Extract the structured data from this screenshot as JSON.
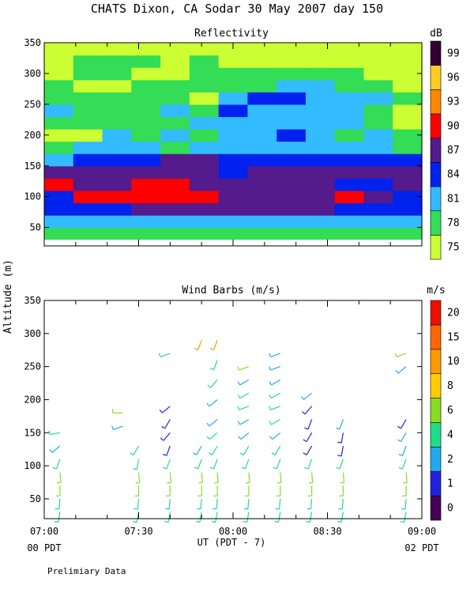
{
  "title": "CHATS Dixon, CA  Sodar  30 May 2007  day 150",
  "footer_note": "Prelimiary Data",
  "shared_ylabel": "Altitude (m)",
  "x_axis": {
    "ticks": [
      "07:00",
      "07:30",
      "08:00",
      "08:30",
      "09:00"
    ],
    "label": "UT  (PDT - 7)",
    "left_local": "00 PDT",
    "right_local": "02 PDT",
    "range_minutes": [
      0,
      120
    ]
  },
  "colors": {
    "refl_levels": [
      "#ccff33",
      "#33dd55",
      "#33bbff",
      "#0022ee",
      "#551a8b",
      "#ff0000",
      "#ff8800",
      "#ffcc22",
      "#330033"
    ],
    "wind_levels": [
      "#440055",
      "#2222dd",
      "#22aaee",
      "#22dd88",
      "#88dd22",
      "#ffcc00",
      "#ff9900",
      "#ff6600",
      "#ee1100"
    ]
  },
  "chart_data": [
    {
      "type": "heatmap",
      "title": "Reflectivity",
      "ylim": [
        20,
        350
      ],
      "yticks": [
        50,
        100,
        150,
        200,
        250,
        300,
        350
      ],
      "colorbar": {
        "unit": "dB",
        "labels": [
          "75",
          "78",
          "81",
          "84",
          "87",
          "90",
          "93",
          "96",
          "99"
        ]
      },
      "x_times": [
        "07:00",
        "07:10",
        "07:20",
        "07:30",
        "07:40",
        "07:50",
        "08:00",
        "08:10",
        "08:20",
        "08:30",
        "08:40",
        "08:50",
        "09:00"
      ],
      "altitudes": [
        40,
        60,
        80,
        100,
        120,
        140,
        160,
        180,
        200,
        220,
        240,
        260,
        280,
        300,
        320,
        340
      ],
      "level_index_grid": [
        [
          1,
          1,
          1,
          1,
          1,
          1,
          1,
          1,
          1,
          1,
          1,
          1,
          1
        ],
        [
          2,
          2,
          2,
          2,
          2,
          2,
          2,
          2,
          2,
          2,
          2,
          2,
          2
        ],
        [
          3,
          3,
          3,
          4,
          4,
          4,
          4,
          4,
          4,
          4,
          3,
          3,
          3
        ],
        [
          3,
          5,
          5,
          5,
          5,
          5,
          4,
          4,
          4,
          4,
          5,
          4,
          3
        ],
        [
          5,
          4,
          4,
          5,
          5,
          4,
          4,
          4,
          4,
          4,
          3,
          3,
          4
        ],
        [
          4,
          4,
          4,
          4,
          4,
          4,
          3,
          4,
          4,
          4,
          4,
          4,
          4
        ],
        [
          2,
          3,
          3,
          3,
          4,
          4,
          3,
          3,
          3,
          3,
          3,
          3,
          3
        ],
        [
          1,
          2,
          2,
          2,
          1,
          2,
          2,
          2,
          2,
          2,
          2,
          2,
          1
        ],
        [
          0,
          0,
          2,
          1,
          2,
          1,
          2,
          2,
          3,
          2,
          1,
          2,
          1
        ],
        [
          1,
          1,
          1,
          1,
          1,
          2,
          2,
          2,
          2,
          2,
          2,
          1,
          0
        ],
        [
          2,
          1,
          1,
          1,
          2,
          1,
          3,
          2,
          2,
          2,
          2,
          1,
          0
        ],
        [
          1,
          1,
          1,
          1,
          1,
          0,
          2,
          3,
          3,
          2,
          2,
          2,
          1
        ],
        [
          1,
          0,
          0,
          1,
          1,
          1,
          1,
          1,
          2,
          2,
          1,
          1,
          0
        ],
        [
          0,
          1,
          1,
          0,
          0,
          1,
          1,
          1,
          1,
          1,
          1,
          0,
          0
        ],
        [
          0,
          1,
          1,
          1,
          0,
          1,
          0,
          0,
          0,
          0,
          0,
          0,
          0
        ],
        [
          0,
          0,
          0,
          0,
          0,
          0,
          0,
          0,
          0,
          0,
          0,
          0,
          0
        ]
      ]
    },
    {
      "type": "scatter",
      "title": "Wind Barbs (m/s)",
      "ylim": [
        20,
        350
      ],
      "yticks": [
        50,
        100,
        150,
        200,
        250,
        300,
        350
      ],
      "colorbar": {
        "unit": "m/s",
        "labels": [
          "0",
          "1",
          "2",
          "4",
          "6",
          "8",
          "10",
          "15",
          "20"
        ]
      },
      "barbs": [
        {
          "t": "07:05",
          "alt": [
            30,
            50,
            70,
            90,
            110,
            130,
            150
          ],
          "dir": [
            190,
            185,
            180,
            175,
            200,
            230,
            260
          ],
          "lvl": [
            3,
            3,
            4,
            4,
            3,
            2,
            3
          ]
        },
        {
          "t": "07:25",
          "alt": [
            160,
            180
          ],
          "dir": [
            250,
            270
          ],
          "lvl": [
            2,
            4
          ]
        },
        {
          "t": "07:30",
          "alt": [
            30,
            50,
            70,
            90,
            110,
            130
          ],
          "dir": [
            190,
            185,
            180,
            175,
            190,
            210
          ],
          "lvl": [
            3,
            3,
            4,
            4,
            3,
            3
          ]
        },
        {
          "t": "07:40",
          "alt": [
            30,
            50,
            70,
            90,
            110,
            130,
            150,
            170,
            190,
            270
          ],
          "dir": [
            190,
            185,
            180,
            175,
            200,
            200,
            220,
            210,
            230,
            250
          ],
          "lvl": [
            3,
            3,
            4,
            4,
            3,
            1,
            1,
            1,
            1,
            3
          ]
        },
        {
          "t": "07:50",
          "alt": [
            30,
            50,
            70,
            90,
            110,
            130,
            290
          ],
          "dir": [
            190,
            185,
            180,
            175,
            200,
            210,
            200
          ],
          "lvl": [
            3,
            3,
            4,
            4,
            3,
            2,
            6
          ]
        },
        {
          "t": "07:55",
          "alt": [
            30,
            50,
            70,
            90,
            110,
            130,
            150,
            170,
            200,
            230,
            260,
            290
          ],
          "dir": [
            190,
            185,
            180,
            175,
            200,
            210,
            230,
            230,
            230,
            220,
            200,
            200
          ],
          "lvl": [
            3,
            3,
            4,
            4,
            3,
            3,
            3,
            2,
            2,
            3,
            3,
            6
          ]
        },
        {
          "t": "08:05",
          "alt": [
            30,
            50,
            70,
            90,
            110,
            130,
            150,
            170,
            190,
            210,
            230,
            250
          ],
          "dir": [
            190,
            185,
            180,
            175,
            200,
            210,
            230,
            240,
            250,
            240,
            240,
            250
          ],
          "lvl": [
            3,
            3,
            4,
            4,
            3,
            3,
            2,
            2,
            3,
            3,
            2,
            4
          ]
        },
        {
          "t": "08:15",
          "alt": [
            30,
            50,
            70,
            90,
            110,
            130,
            150,
            170,
            190,
            210,
            230,
            250,
            270
          ],
          "dir": [
            190,
            185,
            180,
            175,
            200,
            210,
            230,
            240,
            250,
            240,
            240,
            250,
            250
          ],
          "lvl": [
            3,
            3,
            4,
            4,
            3,
            3,
            2,
            3,
            3,
            3,
            2,
            2,
            2
          ]
        },
        {
          "t": "08:25",
          "alt": [
            30,
            50,
            70,
            90,
            110,
            130,
            150,
            170,
            190,
            210
          ],
          "dir": [
            190,
            185,
            180,
            175,
            200,
            210,
            210,
            200,
            220,
            230
          ],
          "lvl": [
            3,
            3,
            4,
            4,
            3,
            1,
            1,
            1,
            1,
            2
          ]
        },
        {
          "t": "08:35",
          "alt": [
            30,
            50,
            70,
            90,
            110,
            130,
            150,
            170
          ],
          "dir": [
            190,
            185,
            180,
            175,
            200,
            190,
            190,
            200
          ],
          "lvl": [
            3,
            3,
            4,
            4,
            3,
            1,
            1,
            2
          ]
        },
        {
          "t": "08:55",
          "alt": [
            30,
            50,
            70,
            90,
            110,
            130,
            150,
            170,
            250,
            270
          ],
          "dir": [
            190,
            185,
            180,
            175,
            200,
            200,
            210,
            210,
            230,
            250
          ],
          "lvl": [
            3,
            3,
            4,
            4,
            3,
            2,
            2,
            1,
            2,
            4
          ]
        }
      ]
    }
  ]
}
